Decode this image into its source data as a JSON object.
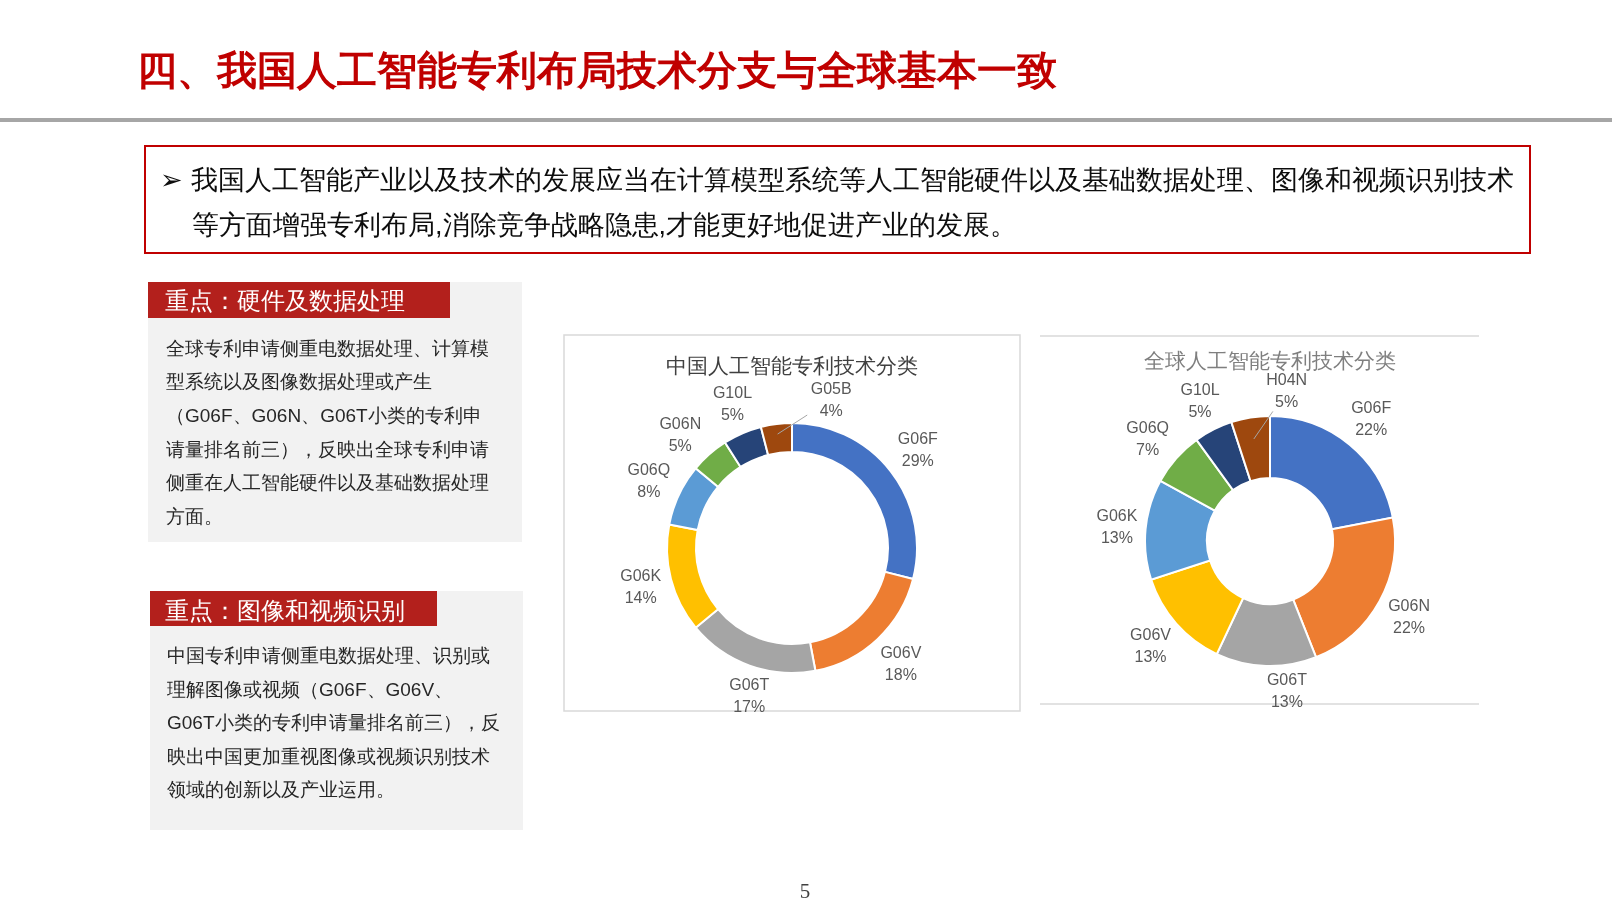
{
  "chart_data": [
    {
      "type": "other",
      "title": "四、我国人工智能专利布局技术分支与全球基本一致",
      "annotations": [
        "➢ 我国人工智能产业以及技术的发展应当在计算模型系统等人工智能硬件以及基础数据处理、图像和视频识别技术等方面增强专利布局,消除竞争战略隐患,才能更好地促进产业的发展。",
        "重点：硬件及数据处理",
        "全球专利申请侧重电数据处理、计算模型系统以及图像数据处理或产生（G06F、G06N、G06T小类的专利申请量排名前三），反映出全球专利申请侧重在人工智能硬件以及基础数据处理方面。",
        "重点：图像和视频识别",
        "中国专利申请侧重电数据处理、识别或理解图像或视频（G06F、G06V、G06T小类的专利申请量排名前三），反映出中国更加重视图像或视频识别技术领域的创新以及产业运用。",
        "5"
      ]
    },
    {
      "type": "donut",
      "title": "中国人工智能专利技术分类",
      "categories": [
        "G06F",
        "G06V",
        "G06T",
        "G06K",
        "G06Q",
        "G06N",
        "G10L",
        "G05B"
      ],
      "values": [
        29,
        18,
        17,
        14,
        8,
        5,
        5,
        4
      ],
      "value_labels": [
        "29%",
        "18%",
        "17%",
        "14%",
        "8%",
        "5%",
        "5%",
        "4%"
      ],
      "colors": [
        "#4472c4",
        "#ed7d31",
        "#a5a5a5",
        "#ffc000",
        "#5b9bd5",
        "#70ad47",
        "#264478",
        "#9e480e"
      ]
    },
    {
      "type": "donut",
      "title": "全球人工智能专利技术分类",
      "categories": [
        "G06F",
        "G06N",
        "G06T",
        "G06V",
        "G06K",
        "G06Q",
        "G10L",
        "H04N"
      ],
      "values": [
        22,
        22,
        13,
        13,
        13,
        7,
        5,
        5
      ],
      "value_labels": [
        "22%",
        "22%",
        "13%",
        "13%",
        "13%",
        "7%",
        "5%",
        "5%"
      ],
      "colors": [
        "#4472c4",
        "#ed7d31",
        "#a5a5a5",
        "#ffc000",
        "#5b9bd5",
        "#70ad47",
        "#264478",
        "#9e480e"
      ]
    }
  ]
}
